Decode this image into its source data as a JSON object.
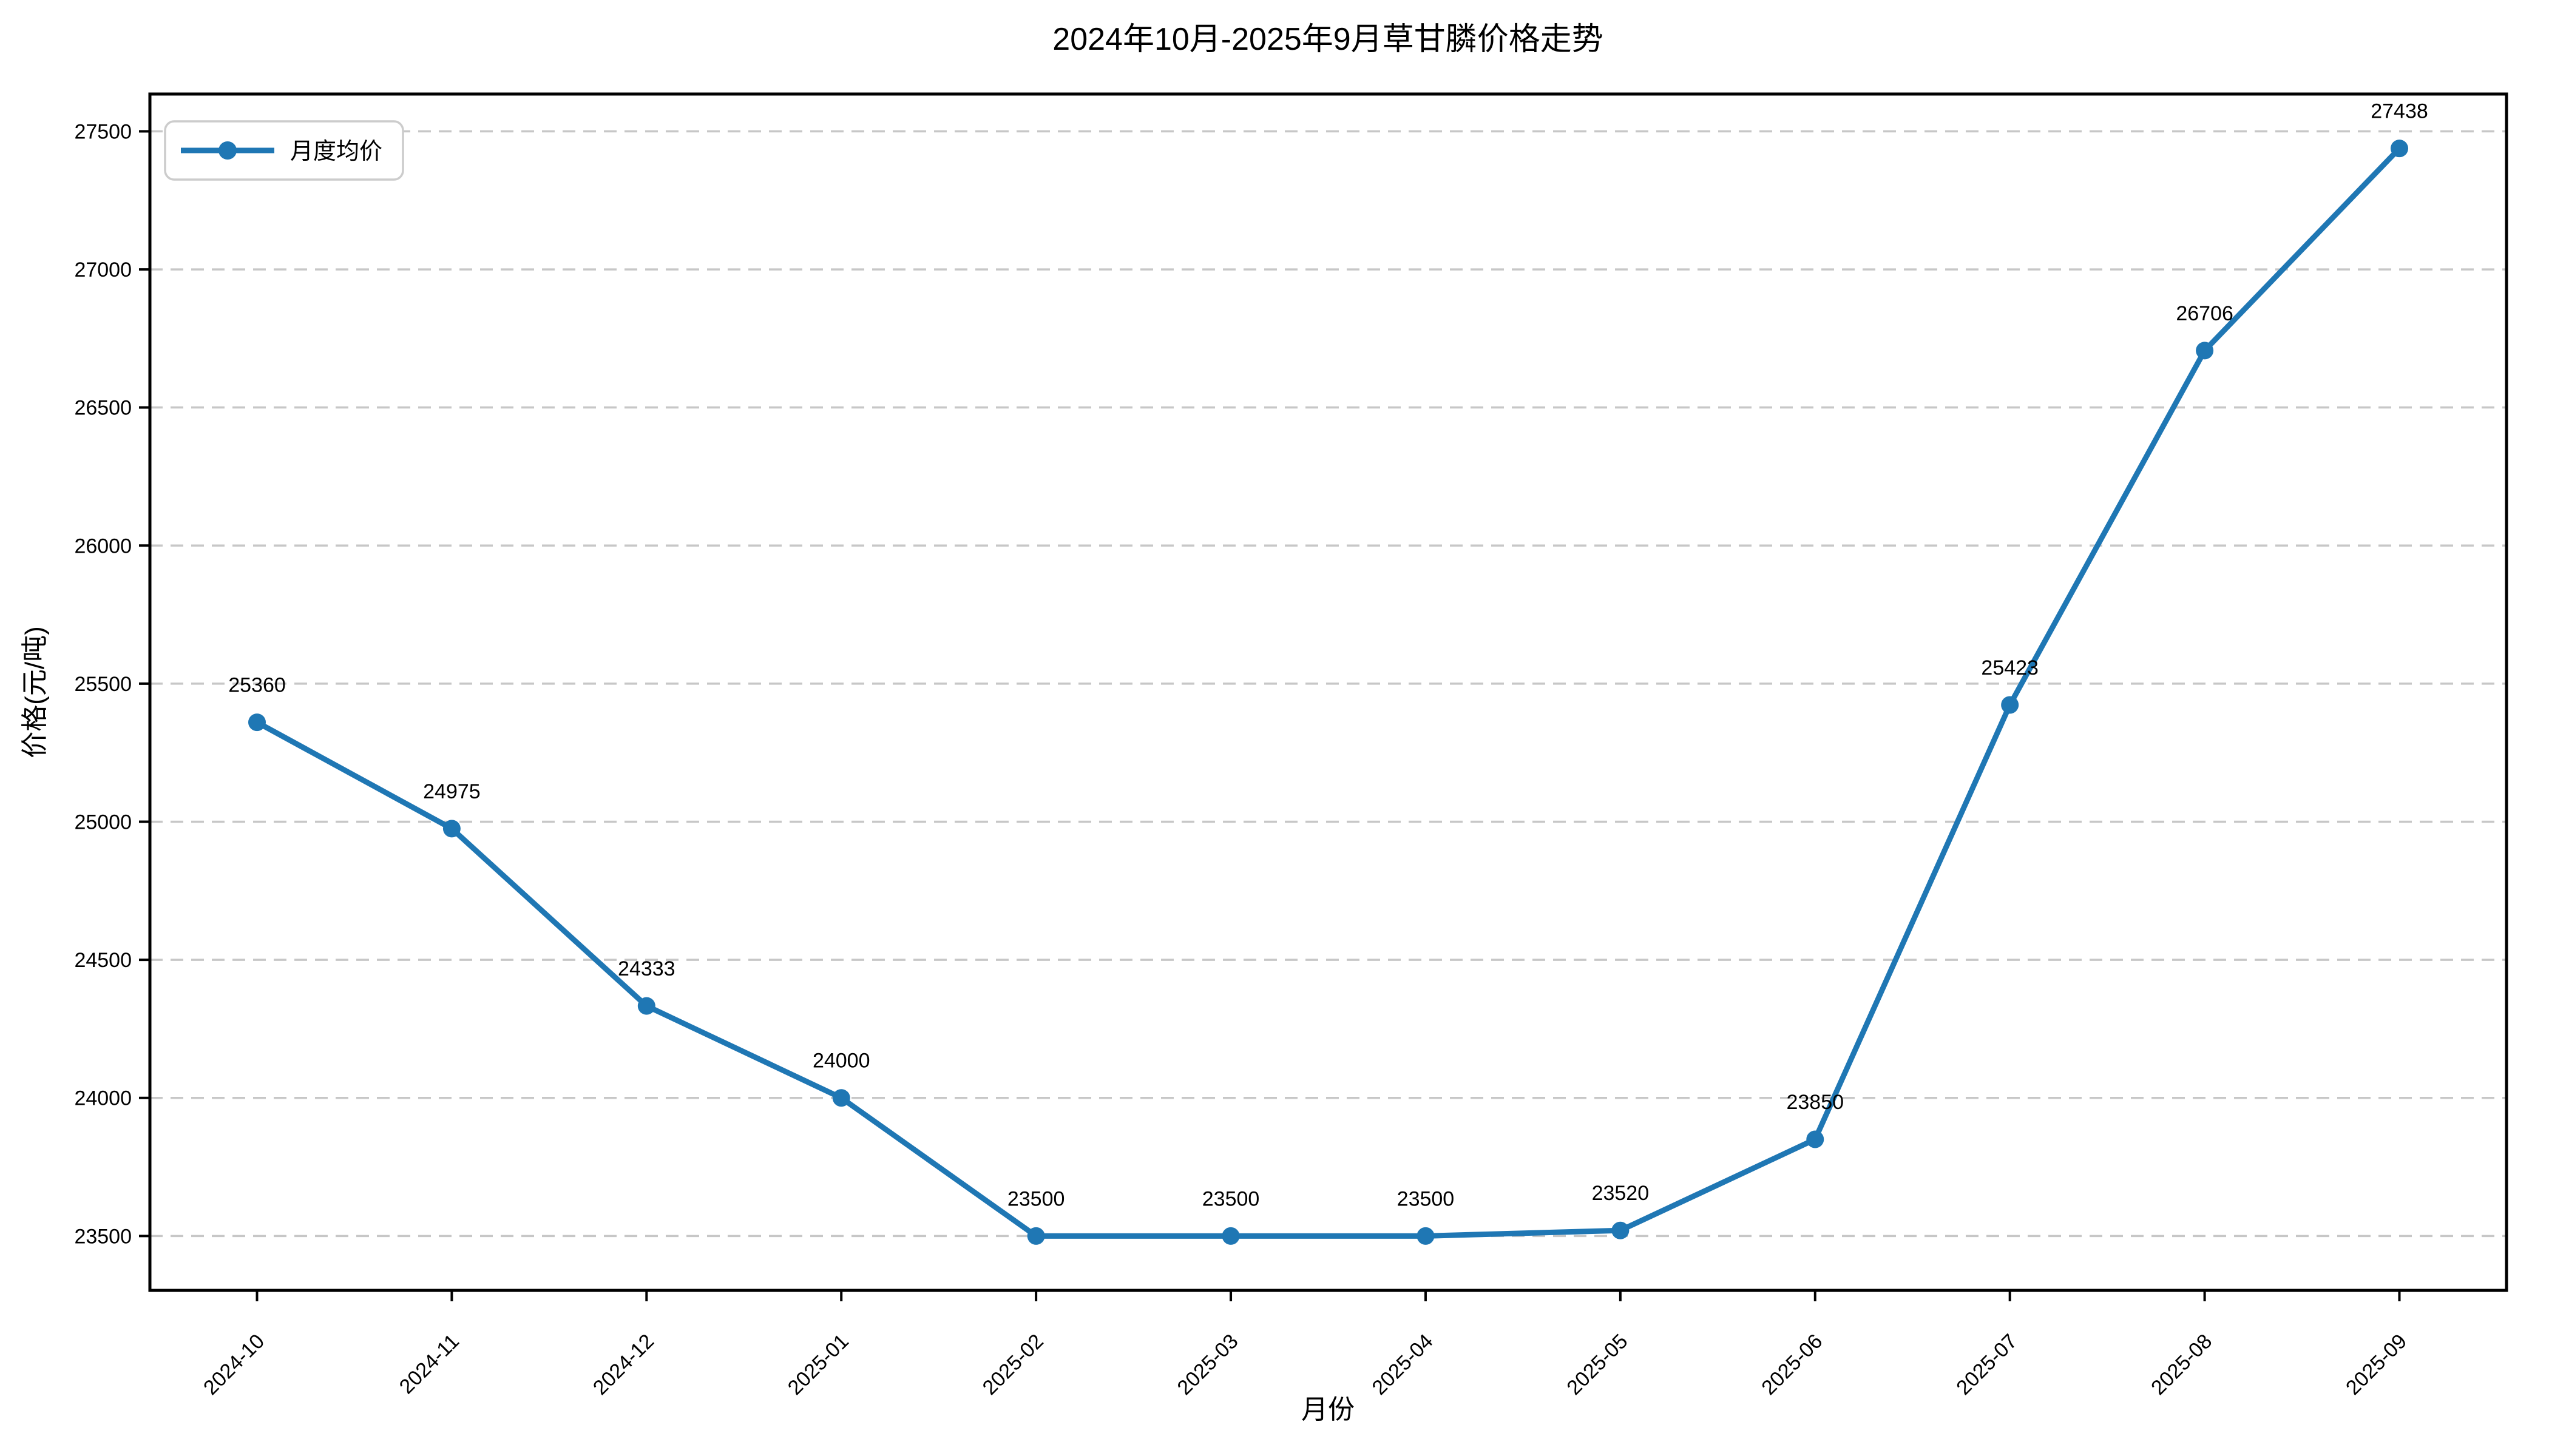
{
  "chart_data": {
    "type": "line",
    "title": "2024年10月-2025年9月草甘膦价格走势",
    "xlabel": "月份",
    "ylabel": "价格(元/吨)",
    "legend_label": "月度均价",
    "legend_position": "upper-left",
    "categories": [
      "2024-10",
      "2024-11",
      "2024-12",
      "2025-01",
      "2025-02",
      "2025-03",
      "2025-04",
      "2025-05",
      "2025-06",
      "2025-07",
      "2025-08",
      "2025-09"
    ],
    "series": [
      {
        "name": "月度均价",
        "values": [
          25360,
          24975,
          24333,
          24000,
          23500,
          23500,
          23500,
          23520,
          23850,
          25423,
          26706,
          27438
        ]
      }
    ],
    "point_labels": [
      "25360",
      "24975",
      "24333",
      "24000",
      "23500",
      "23500",
      "23500",
      "23520",
      "23850",
      "25423",
      "26706",
      "27438"
    ],
    "yticks": [
      23500,
      24000,
      24500,
      25000,
      25500,
      26000,
      26500,
      27000,
      27500
    ],
    "ylim": [
      23303,
      27635
    ],
    "grid": "y-only-dashed",
    "colors": {
      "line": "#1f77b4",
      "marker": "#1f77b4",
      "grid": "#c7c7c7",
      "text": "#000000",
      "spine": "#000000",
      "legend_border": "#cccccc",
      "background": "#ffffff"
    }
  }
}
